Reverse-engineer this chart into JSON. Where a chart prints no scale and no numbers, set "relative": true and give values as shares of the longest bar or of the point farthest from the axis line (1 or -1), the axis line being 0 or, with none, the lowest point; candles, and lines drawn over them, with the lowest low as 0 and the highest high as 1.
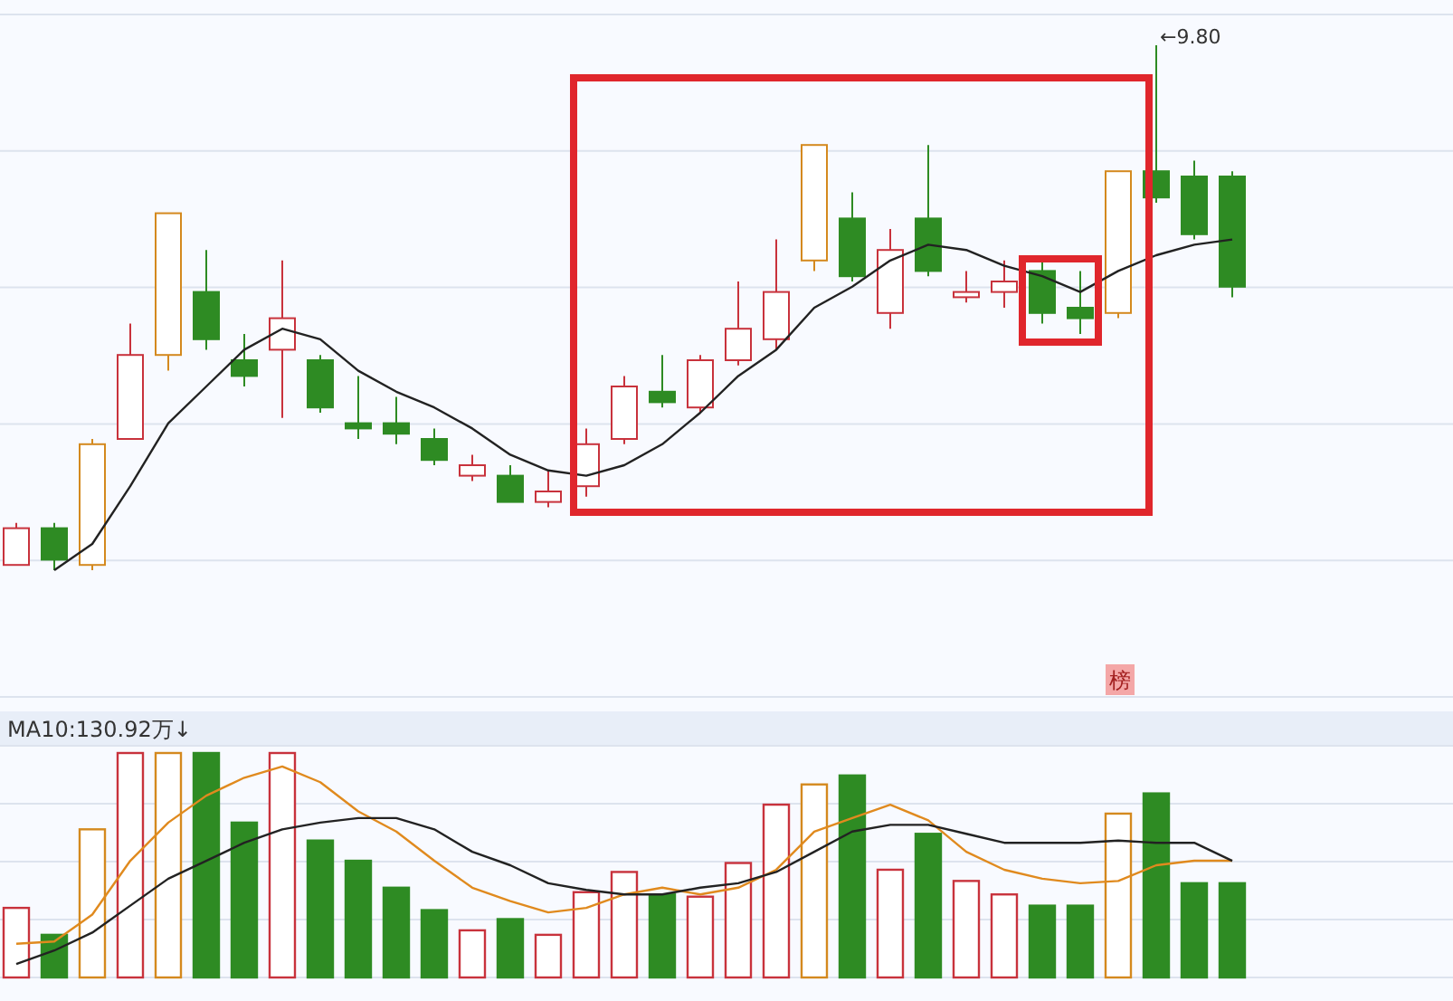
{
  "chart_data": [
    {
      "type": "candlestick",
      "relative": true,
      "grid": "y",
      "categories": [
        null,
        null,
        null,
        null,
        null,
        null,
        null,
        null,
        null,
        null,
        null,
        null,
        null,
        null,
        null,
        null,
        null,
        null,
        null,
        null,
        null,
        null,
        null,
        null,
        null,
        null,
        null,
        null,
        null,
        null,
        null,
        null,
        null
      ],
      "ohlc": [
        [
          0.01,
          0.09,
          0.01,
          0.08
        ],
        [
          0.08,
          0.09,
          0,
          0.02
        ],
        [
          0.01,
          0.25,
          0,
          0.24
        ],
        [
          0.25,
          0.47,
          0.25,
          0.41
        ],
        [
          0.41,
          0.68,
          0.38,
          0.68
        ],
        [
          0.53,
          0.61,
          0.42,
          0.44
        ],
        [
          0.4,
          0.45,
          0.35,
          0.37
        ],
        [
          0.42,
          0.59,
          0.29,
          0.48
        ],
        [
          0.4,
          0.41,
          0.3,
          0.31
        ],
        [
          0.28,
          0.37,
          0.25,
          0.27
        ],
        [
          0.28,
          0.33,
          0.24,
          0.26
        ],
        [
          0.25,
          0.27,
          0.2,
          0.21
        ],
        [
          0.18,
          0.22,
          0.17,
          0.2
        ],
        [
          0.18,
          0.2,
          0.13,
          0.13
        ],
        [
          0.13,
          0.19,
          0.12,
          0.15
        ],
        [
          0.16,
          0.27,
          0.14,
          0.24
        ],
        [
          0.25,
          0.37,
          0.24,
          0.35
        ],
        [
          0.34,
          0.41,
          0.31,
          0.32
        ],
        [
          0.31,
          0.41,
          0.3,
          0.4
        ],
        [
          0.4,
          0.55,
          0.39,
          0.46
        ],
        [
          0.44,
          0.63,
          0.42,
          0.53
        ],
        [
          0.59,
          0.81,
          0.57,
          0.81
        ],
        [
          0.67,
          0.72,
          0.55,
          0.56
        ],
        [
          0.49,
          0.65,
          0.46,
          0.61
        ],
        [
          0.67,
          0.81,
          0.56,
          0.57
        ],
        [
          0.52,
          0.57,
          0.51,
          0.53
        ],
        [
          0.53,
          0.59,
          0.5,
          0.55
        ],
        [
          0.57,
          0.59,
          0.47,
          0.49
        ],
        [
          0.5,
          0.57,
          0.45,
          0.48
        ],
        [
          0.49,
          0.76,
          0.48,
          0.76
        ],
        [
          0.76,
          1,
          0.7,
          0.71
        ],
        [
          0.75,
          0.78,
          0.63,
          0.64
        ],
        [
          0.75,
          0.76,
          0.52,
          0.54
        ]
      ],
      "colors": [
        "#c8323c",
        "#2e8b23",
        "#d4891e",
        "#c8323c",
        "#d4891e",
        "#2e8b23",
        "#2e8b23",
        "#c8323c",
        "#2e8b23",
        "#2e8b23",
        "#2e8b23",
        "#2e8b23",
        "#c8323c",
        "#2e8b23",
        "#c8323c",
        "#c8323c",
        "#c8323c",
        "#2e8b23",
        "#c8323c",
        "#c8323c",
        "#c8323c",
        "#d4891e",
        "#2e8b23",
        "#c8323c",
        "#2e8b23",
        "#c8323c",
        "#c8323c",
        "#2e8b23",
        "#2e8b23",
        "#d4891e",
        "#2e8b23",
        "#2e8b23",
        "#2e8b23"
      ],
      "series": [
        {
          "type": "line",
          "color": "#222222",
          "values": [
            null,
            0,
            0.05,
            0.16,
            0.28,
            0.35,
            0.42,
            0.46,
            0.44,
            0.38,
            0.34,
            0.31,
            0.27,
            0.22,
            0.19,
            0.18,
            0.2,
            0.24,
            0.3,
            0.37,
            0.42,
            0.5,
            0.54,
            0.59,
            0.62,
            0.61,
            0.58,
            0.56,
            0.53,
            0.57,
            0.6,
            0.62,
            0.63
          ]
        }
      ],
      "annotations": [
        "←9.80",
        "榜"
      ]
    },
    {
      "type": "bar",
      "relative": true,
      "grid": "y",
      "title": "MA10:130.92万↓",
      "categories": [
        null,
        null,
        null,
        null,
        null,
        null,
        null,
        null,
        null,
        null,
        null,
        null,
        null,
        null,
        null,
        null,
        null,
        null,
        null,
        null,
        null,
        null,
        null,
        null,
        null,
        null,
        null,
        null,
        null,
        null,
        null,
        null,
        null
      ],
      "series": [
        {
          "type": "bar",
          "values": [
            0.31,
            0.19,
            0.66,
            1,
            1,
            1,
            0.69,
            1,
            0.61,
            0.52,
            0.4,
            0.3,
            0.21,
            0.26,
            0.19,
            0.38,
            0.47,
            0.37,
            0.36,
            0.51,
            0.77,
            0.86,
            0.9,
            0.48,
            0.64,
            0.43,
            0.37,
            0.32,
            0.32,
            0.73,
            0.82,
            0.42,
            0.42
          ],
          "colors": [
            "#c8323c",
            "#2e8b23",
            "#d4891e",
            "#c8323c",
            "#d4891e",
            "#2e8b23",
            "#2e8b23",
            "#c8323c",
            "#2e8b23",
            "#2e8b23",
            "#2e8b23",
            "#2e8b23",
            "#c8323c",
            "#2e8b23",
            "#c8323c",
            "#c8323c",
            "#c8323c",
            "#2e8b23",
            "#c8323c",
            "#c8323c",
            "#c8323c",
            "#d4891e",
            "#2e8b23",
            "#c8323c",
            "#2e8b23",
            "#c8323c",
            "#c8323c",
            "#2e8b23",
            "#2e8b23",
            "#d4891e",
            "#2e8b23",
            "#2e8b23",
            "#2e8b23"
          ]
        },
        {
          "type": "line",
          "color": "#e08a1e",
          "values": [
            0.15,
            0.16,
            0.28,
            0.52,
            0.69,
            0.81,
            0.89,
            0.94,
            0.87,
            0.74,
            0.65,
            0.52,
            0.4,
            0.34,
            0.29,
            0.31,
            0.37,
            0.4,
            0.37,
            0.4,
            0.48,
            0.65,
            0.71,
            0.77,
            0.7,
            0.56,
            0.48,
            0.44,
            0.42,
            0.43,
            0.5,
            0.52,
            0.52
          ]
        },
        {
          "type": "line",
          "color": "#222222",
          "values": [
            0.06,
            0.12,
            0.2,
            0.32,
            0.44,
            0.52,
            0.6,
            0.66,
            0.69,
            0.71,
            0.71,
            0.66,
            0.56,
            0.5,
            0.42,
            0.39,
            0.37,
            0.37,
            0.4,
            0.42,
            0.47,
            0.56,
            0.65,
            0.68,
            0.68,
            0.64,
            0.6,
            0.6,
            0.6,
            0.61,
            0.6,
            0.6,
            0.52
          ]
        }
      ]
    }
  ]
}
